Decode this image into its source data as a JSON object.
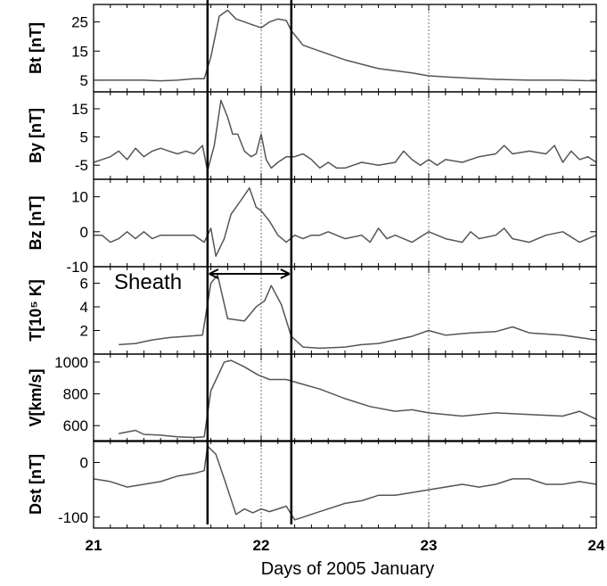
{
  "chart_data": {
    "type": "line",
    "xlabel": "Days of 2005 January",
    "x_ticks": [
      "21",
      "22",
      "23",
      "24"
    ],
    "xlim": [
      21,
      24
    ],
    "line_color": "#555555",
    "boundaries": [
      21.68,
      22.18
    ],
    "dotted_lines": [
      22.0,
      23.0
    ],
    "annotation": {
      "text": "Sheath",
      "from": 21.68,
      "to": 22.18
    },
    "panels": [
      {
        "ylabel": "Bt [nT]",
        "yticks": [
          5,
          15,
          25
        ],
        "ytick_labels": [
          "5",
          "15",
          "25"
        ],
        "ylim": [
          1,
          31
        ],
        "series": [
          [
            21.0,
            5.0
          ],
          [
            21.1,
            5.0
          ],
          [
            21.2,
            5.0
          ],
          [
            21.3,
            5.0
          ],
          [
            21.4,
            4.8
          ],
          [
            21.5,
            5.0
          ],
          [
            21.6,
            5.5
          ],
          [
            21.66,
            5.5
          ],
          [
            21.7,
            13
          ],
          [
            21.75,
            27
          ],
          [
            21.8,
            29
          ],
          [
            21.85,
            26
          ],
          [
            21.9,
            25
          ],
          [
            21.95,
            24
          ],
          [
            22.0,
            23
          ],
          [
            22.05,
            25
          ],
          [
            22.1,
            26
          ],
          [
            22.15,
            25.5
          ],
          [
            22.18,
            22
          ],
          [
            22.25,
            17
          ],
          [
            22.35,
            15
          ],
          [
            22.5,
            12
          ],
          [
            22.7,
            9
          ],
          [
            22.9,
            7.5
          ],
          [
            23.0,
            6.5
          ],
          [
            23.2,
            5.8
          ],
          [
            23.4,
            5.3
          ],
          [
            23.6,
            5.0
          ],
          [
            23.8,
            5.0
          ],
          [
            24.0,
            4.8
          ]
        ]
      },
      {
        "ylabel": "By [nT]",
        "yticks": [
          -5,
          5,
          15
        ],
        "ytick_labels": [
          "-5",
          "5",
          "15"
        ],
        "ylim": [
          -10,
          21
        ],
        "series": [
          [
            21.0,
            -4
          ],
          [
            21.05,
            -3
          ],
          [
            21.1,
            -2
          ],
          [
            21.15,
            0
          ],
          [
            21.2,
            -3
          ],
          [
            21.25,
            1
          ],
          [
            21.3,
            -2
          ],
          [
            21.35,
            0
          ],
          [
            21.4,
            1
          ],
          [
            21.45,
            0
          ],
          [
            21.5,
            -1
          ],
          [
            21.55,
            0
          ],
          [
            21.6,
            -1
          ],
          [
            21.65,
            2
          ],
          [
            21.68,
            -7
          ],
          [
            21.72,
            2
          ],
          [
            21.76,
            18
          ],
          [
            21.8,
            12
          ],
          [
            21.83,
            6
          ],
          [
            21.86,
            6
          ],
          [
            21.9,
            0
          ],
          [
            21.94,
            -2
          ],
          [
            21.97,
            -1
          ],
          [
            22.0,
            6
          ],
          [
            22.03,
            -3
          ],
          [
            22.06,
            -6
          ],
          [
            22.1,
            -4
          ],
          [
            22.15,
            -2
          ],
          [
            22.2,
            -2
          ],
          [
            22.25,
            -1
          ],
          [
            22.3,
            -3
          ],
          [
            22.35,
            -6
          ],
          [
            22.4,
            -4
          ],
          [
            22.45,
            -6
          ],
          [
            22.5,
            -6
          ],
          [
            22.6,
            -4
          ],
          [
            22.7,
            -5
          ],
          [
            22.8,
            -4
          ],
          [
            22.85,
            0
          ],
          [
            22.9,
            -3
          ],
          [
            22.95,
            -5
          ],
          [
            23.0,
            -3
          ],
          [
            23.05,
            -5
          ],
          [
            23.1,
            -3
          ],
          [
            23.2,
            -4
          ],
          [
            23.3,
            -2
          ],
          [
            23.4,
            -1
          ],
          [
            23.45,
            2
          ],
          [
            23.5,
            -1
          ],
          [
            23.6,
            0
          ],
          [
            23.7,
            -1
          ],
          [
            23.75,
            2
          ],
          [
            23.8,
            -4
          ],
          [
            23.85,
            0
          ],
          [
            23.9,
            -3
          ],
          [
            23.95,
            -2
          ],
          [
            24.0,
            -4
          ]
        ]
      },
      {
        "ylabel": "Bz [nT]",
        "yticks": [
          -10,
          0,
          10
        ],
        "ytick_labels": [
          "-10",
          "0",
          "10"
        ],
        "ylim": [
          -10,
          15
        ],
        "series": [
          [
            21.0,
            -1
          ],
          [
            21.05,
            -1
          ],
          [
            21.1,
            -3
          ],
          [
            21.15,
            -2
          ],
          [
            21.2,
            0
          ],
          [
            21.25,
            -2
          ],
          [
            21.3,
            0
          ],
          [
            21.35,
            -2
          ],
          [
            21.4,
            -1
          ],
          [
            21.5,
            -1
          ],
          [
            21.6,
            -1
          ],
          [
            21.66,
            -3
          ],
          [
            21.7,
            1
          ],
          [
            21.73,
            -7
          ],
          [
            21.78,
            -2
          ],
          [
            21.82,
            5
          ],
          [
            21.88,
            9
          ],
          [
            21.93,
            12.5
          ],
          [
            21.97,
            7
          ],
          [
            22.0,
            6
          ],
          [
            22.05,
            3
          ],
          [
            22.1,
            -1
          ],
          [
            22.15,
            -3
          ],
          [
            22.2,
            -1
          ],
          [
            22.25,
            -2
          ],
          [
            22.3,
            -1
          ],
          [
            22.35,
            -1
          ],
          [
            22.4,
            0
          ],
          [
            22.5,
            -2
          ],
          [
            22.6,
            -1
          ],
          [
            22.65,
            -3
          ],
          [
            22.7,
            1
          ],
          [
            22.75,
            -2
          ],
          [
            22.8,
            -1
          ],
          [
            22.9,
            -3
          ],
          [
            23.0,
            0
          ],
          [
            23.1,
            -2
          ],
          [
            23.2,
            -3
          ],
          [
            23.25,
            0
          ],
          [
            23.3,
            -2
          ],
          [
            23.4,
            -1
          ],
          [
            23.45,
            1
          ],
          [
            23.5,
            -2
          ],
          [
            23.6,
            -3
          ],
          [
            23.7,
            -1
          ],
          [
            23.8,
            0
          ],
          [
            23.9,
            -3
          ],
          [
            24.0,
            -1
          ]
        ]
      },
      {
        "ylabel": "T[10⁵ K]",
        "yticks": [
          2,
          4,
          6
        ],
        "ytick_labels": [
          "2",
          "4",
          "6"
        ],
        "ylim": [
          0,
          7.4
        ],
        "series": [
          [
            21.15,
            0.8
          ],
          [
            21.25,
            0.9
          ],
          [
            21.35,
            1.2
          ],
          [
            21.45,
            1.4
          ],
          [
            21.55,
            1.5
          ],
          [
            21.65,
            1.6
          ],
          [
            21.7,
            6.0
          ],
          [
            21.74,
            6.7
          ],
          [
            21.8,
            3.0
          ],
          [
            21.9,
            2.8
          ],
          [
            21.97,
            4.0
          ],
          [
            22.02,
            4.5
          ],
          [
            22.06,
            5.8
          ],
          [
            22.12,
            4.2
          ],
          [
            22.18,
            1.5
          ],
          [
            22.25,
            0.6
          ],
          [
            22.35,
            0.5
          ],
          [
            22.5,
            0.6
          ],
          [
            22.6,
            0.8
          ],
          [
            22.7,
            0.9
          ],
          [
            22.8,
            1.2
          ],
          [
            22.9,
            1.5
          ],
          [
            23.0,
            2.0
          ],
          [
            23.1,
            1.6
          ],
          [
            23.25,
            1.8
          ],
          [
            23.4,
            1.9
          ],
          [
            23.5,
            2.3
          ],
          [
            23.6,
            1.8
          ],
          [
            23.8,
            1.6
          ],
          [
            24.0,
            1.2
          ]
        ]
      },
      {
        "ylabel": "V[km/s]",
        "yticks": [
          600,
          800,
          1000
        ],
        "ytick_labels": [
          "600",
          "800",
          "1000"
        ],
        "ylim": [
          500,
          1050
        ],
        "series": [
          [
            21.15,
            550
          ],
          [
            21.25,
            570
          ],
          [
            21.3,
            545
          ],
          [
            21.4,
            540
          ],
          [
            21.5,
            530
          ],
          [
            21.6,
            525
          ],
          [
            21.66,
            530
          ],
          [
            21.7,
            820
          ],
          [
            21.78,
            1000
          ],
          [
            21.82,
            1010
          ],
          [
            21.9,
            970
          ],
          [
            21.98,
            920
          ],
          [
            22.05,
            890
          ],
          [
            22.15,
            890
          ],
          [
            22.25,
            860
          ],
          [
            22.35,
            830
          ],
          [
            22.5,
            770
          ],
          [
            22.65,
            720
          ],
          [
            22.8,
            690
          ],
          [
            22.9,
            700
          ],
          [
            23.0,
            680
          ],
          [
            23.2,
            660
          ],
          [
            23.4,
            680
          ],
          [
            23.6,
            670
          ],
          [
            23.8,
            660
          ],
          [
            23.9,
            690
          ],
          [
            24.0,
            640
          ]
        ]
      },
      {
        "ylabel": "Dst [nT]",
        "yticks": [
          -100,
          0
        ],
        "ytick_labels": [
          "-100",
          "0"
        ],
        "ylim": [
          -120,
          40
        ],
        "series": [
          [
            21.0,
            -30
          ],
          [
            21.1,
            -35
          ],
          [
            21.2,
            -45
          ],
          [
            21.3,
            -40
          ],
          [
            21.4,
            -35
          ],
          [
            21.5,
            -25
          ],
          [
            21.6,
            -20
          ],
          [
            21.66,
            -15
          ],
          [
            21.68,
            30
          ],
          [
            21.73,
            15
          ],
          [
            21.78,
            -30
          ],
          [
            21.85,
            -95
          ],
          [
            21.9,
            -85
          ],
          [
            21.95,
            -92
          ],
          [
            22.0,
            -85
          ],
          [
            22.05,
            -90
          ],
          [
            22.1,
            -85
          ],
          [
            22.15,
            -80
          ],
          [
            22.2,
            -105
          ],
          [
            22.25,
            -100
          ],
          [
            22.35,
            -90
          ],
          [
            22.5,
            -75
          ],
          [
            22.6,
            -70
          ],
          [
            22.7,
            -60
          ],
          [
            22.8,
            -60
          ],
          [
            22.9,
            -55
          ],
          [
            23.0,
            -50
          ],
          [
            23.2,
            -40
          ],
          [
            23.3,
            -45
          ],
          [
            23.4,
            -40
          ],
          [
            23.5,
            -30
          ],
          [
            23.6,
            -30
          ],
          [
            23.7,
            -40
          ],
          [
            23.8,
            -40
          ],
          [
            23.9,
            -35
          ],
          [
            24.0,
            -40
          ]
        ]
      }
    ]
  }
}
